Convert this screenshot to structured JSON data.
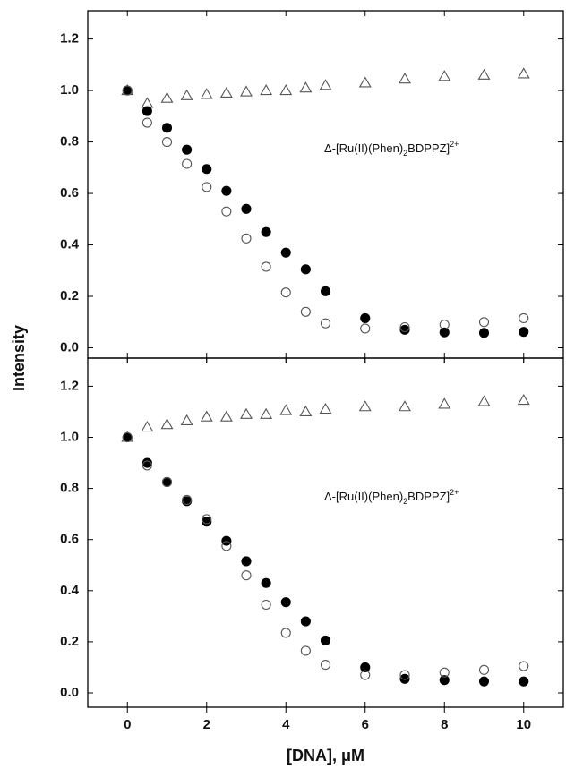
{
  "y_label": "Intensity",
  "chart_data": [
    {
      "type": "scatter",
      "annotation": [
        "Δ-[Ru(II)(Phen)",
        "2",
        "BDPPZ]",
        "2+"
      ],
      "x": [
        0,
        0.5,
        1,
        1.5,
        2,
        2.5,
        3,
        3.5,
        4,
        4.5,
        5,
        6,
        7,
        8,
        9,
        10
      ],
      "xlim": [
        -1,
        11
      ],
      "xticks": [
        0,
        2,
        4,
        6,
        8,
        10
      ],
      "ylim": [
        -0.04,
        1.31
      ],
      "yticks": [
        {
          "value": 0,
          "label": "0.0"
        },
        {
          "value": 0.2,
          "label": "0.2"
        },
        {
          "value": 0.4,
          "label": "0.4"
        },
        {
          "value": 0.6,
          "label": "0.6"
        },
        {
          "value": 0.8,
          "label": "0.8"
        },
        {
          "value": 1,
          "label": "1.0"
        },
        {
          "value": 1.2,
          "label": "1.2"
        }
      ],
      "series": [
        {
          "marker": "triangle",
          "color": "#555",
          "filled": false,
          "values": [
            1.0,
            0.95,
            0.97,
            0.98,
            0.985,
            0.99,
            0.995,
            1.0,
            1.0,
            1.01,
            1.02,
            1.03,
            1.045,
            1.055,
            1.06,
            1.065
          ]
        },
        {
          "marker": "circle",
          "color": "#000",
          "filled": true,
          "values": [
            1.0,
            0.92,
            0.855,
            0.77,
            0.695,
            0.61,
            0.54,
            0.45,
            0.37,
            0.305,
            0.22,
            0.115,
            0.07,
            0.06,
            0.058,
            0.062
          ]
        },
        {
          "marker": "circle",
          "color": "#555",
          "filled": false,
          "values": [
            1.0,
            0.875,
            0.8,
            0.715,
            0.625,
            0.53,
            0.425,
            0.315,
            0.215,
            0.14,
            0.095,
            0.075,
            0.08,
            0.09,
            0.1,
            0.115
          ]
        }
      ]
    },
    {
      "type": "scatter",
      "annotation": [
        "Λ-[Ru(II)(Phen)",
        "2",
        "BDPPZ]",
        "2+"
      ],
      "x_label": "[DNA], μM",
      "x": [
        0,
        0.5,
        1,
        1.5,
        2,
        2.5,
        3,
        3.5,
        4,
        4.5,
        5,
        6,
        7,
        8,
        9,
        10
      ],
      "xlim": [
        -1,
        11
      ],
      "xticks": [
        0,
        2,
        4,
        6,
        8,
        10
      ],
      "ylim": [
        -0.056,
        1.31
      ],
      "yticks": [
        {
          "value": 0,
          "label": "0.0"
        },
        {
          "value": 0.2,
          "label": "0.2"
        },
        {
          "value": 0.4,
          "label": "0.4"
        },
        {
          "value": 0.6,
          "label": "0.6"
        },
        {
          "value": 0.8,
          "label": "0.8"
        },
        {
          "value": 1,
          "label": "1.0"
        },
        {
          "value": 1.2,
          "label": "1.2"
        }
      ],
      "series": [
        {
          "marker": "triangle",
          "color": "#555",
          "filled": false,
          "values": [
            1.0,
            1.04,
            1.05,
            1.065,
            1.08,
            1.08,
            1.09,
            1.09,
            1.105,
            1.1,
            1.11,
            1.12,
            1.12,
            1.13,
            1.14,
            1.145
          ]
        },
        {
          "marker": "circle",
          "color": "#000",
          "filled": true,
          "values": [
            1.0,
            0.9,
            0.825,
            0.75,
            0.67,
            0.595,
            0.515,
            0.43,
            0.355,
            0.28,
            0.205,
            0.1,
            0.055,
            0.05,
            0.045,
            0.045
          ]
        },
        {
          "marker": "circle",
          "color": "#555",
          "filled": false,
          "values": [
            1.0,
            0.89,
            0.825,
            0.755,
            0.68,
            0.575,
            0.46,
            0.345,
            0.235,
            0.165,
            0.11,
            0.07,
            0.07,
            0.08,
            0.09,
            0.105
          ]
        }
      ]
    }
  ]
}
